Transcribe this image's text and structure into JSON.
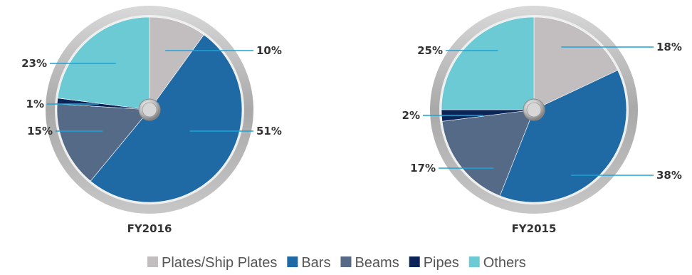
{
  "chart_data": [
    {
      "type": "pie",
      "title": "FY2016",
      "slices": [
        {
          "label": "Plates/Ship Plates",
          "value": 10,
          "display": "10%"
        },
        {
          "label": "Bars",
          "value": 51,
          "display": "51%"
        },
        {
          "label": "Beams",
          "value": 15,
          "display": "15%"
        },
        {
          "label": "Pipes",
          "value": 1,
          "display": "1%"
        },
        {
          "label": "Others",
          "value": 23,
          "display": "23%"
        }
      ]
    },
    {
      "type": "pie",
      "title": "FY2015",
      "slices": [
        {
          "label": "Plates/Ship Plates",
          "value": 18,
          "display": "18%"
        },
        {
          "label": "Bars",
          "value": 38,
          "display": "38%"
        },
        {
          "label": "Beams",
          "value": 17,
          "display": "17%"
        },
        {
          "label": "Pipes",
          "value": 2,
          "display": "2%"
        },
        {
          "label": "Others",
          "value": 25,
          "display": "25%"
        }
      ]
    }
  ],
  "legend": [
    {
      "label": "Plates/Ship Plates",
      "color": "#c2bec0"
    },
    {
      "label": "Bars",
      "color": "#1f6aa5"
    },
    {
      "label": "Beams",
      "color": "#546a86"
    },
    {
      "label": "Pipes",
      "color": "#0b2559"
    },
    {
      "label": "Others",
      "color": "#6ccad4"
    }
  ],
  "leader_color": "#1da3d8"
}
